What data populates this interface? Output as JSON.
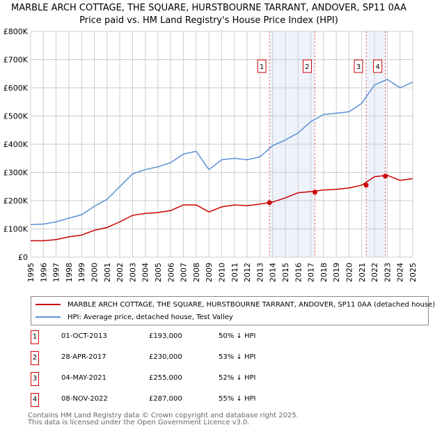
{
  "title": "MARBLE ARCH COTTAGE, THE SQUARE, HURSTBOURNE TARRANT, ANDOVER, SP11 0AA",
  "subtitle": "Price paid vs. HM Land Registry's House Price Index (HPI)",
  "chart_data": {
    "type": "line",
    "title": "MARBLE ARCH COTTAGE, THE SQUARE, HURSTBOURNE TARRANT, ANDOVER, SP11 0AA",
    "ylim": [
      0,
      800000
    ],
    "xlim": [
      1995,
      2025
    ],
    "yticks": [
      {
        "v": 0,
        "label": "£0"
      },
      {
        "v": 100000,
        "label": "£100K"
      },
      {
        "v": 200000,
        "label": "£200K"
      },
      {
        "v": 300000,
        "label": "£300K"
      },
      {
        "v": 400000,
        "label": "£400K"
      },
      {
        "v": 500000,
        "label": "£500K"
      },
      {
        "v": 600000,
        "label": "£600K"
      },
      {
        "v": 700000,
        "label": "£700K"
      },
      {
        "v": 800000,
        "label": "£800K"
      }
    ],
    "xticks": [
      "1995",
      "1996",
      "1997",
      "1998",
      "1999",
      "2000",
      "2001",
      "2002",
      "2003",
      "2004",
      "2005",
      "2006",
      "2007",
      "2008",
      "2009",
      "2010",
      "2011",
      "2012",
      "2013",
      "2014",
      "2015",
      "2016",
      "2017",
      "2018",
      "2019",
      "2020",
      "2021",
      "2022",
      "2023",
      "2024",
      "2025"
    ],
    "x": [
      1995,
      1996,
      1997,
      1998,
      1999,
      2000,
      2001,
      2002,
      2003,
      2004,
      2005,
      2006,
      2007,
      2008,
      2009,
      2010,
      2011,
      2012,
      2013,
      2014,
      2015,
      2016,
      2017,
      2018,
      2019,
      2020,
      2021,
      2022,
      2023,
      2024,
      2025
    ],
    "series": [
      {
        "name": "MARBLE ARCH COTTAGE, THE SQUARE, HURSTBOURNE TARRANT, ANDOVER, SP11 0AA (detached house)",
        "color": "#cc0000",
        "values": [
          58000,
          58000,
          62000,
          72000,
          78000,
          95000,
          105000,
          125000,
          148000,
          155000,
          158000,
          165000,
          185000,
          185000,
          160000,
          178000,
          185000,
          182000,
          188000,
          195000,
          210000,
          228000,
          232000,
          238000,
          240000,
          245000,
          255000,
          285000,
          290000,
          272000,
          278000
        ]
      },
      {
        "name": "HPI: Average price, detached house, Test Valley",
        "color": "#5b8fd4",
        "values": [
          115000,
          117000,
          125000,
          138000,
          150000,
          180000,
          205000,
          250000,
          295000,
          310000,
          320000,
          335000,
          365000,
          375000,
          310000,
          345000,
          350000,
          345000,
          355000,
          395000,
          415000,
          440000,
          480000,
          505000,
          510000,
          515000,
          545000,
          610000,
          630000,
          600000,
          620000
        ]
      }
    ],
    "sales": [
      {
        "n": "1",
        "x": 2013.75,
        "date": "01-OCT-2013",
        "price": 193000,
        "price_label": "£193,000",
        "hpi": "50% ↓ HPI"
      },
      {
        "n": "2",
        "x": 2017.32,
        "date": "28-APR-2017",
        "price": 230000,
        "price_label": "£230,000",
        "hpi": "53% ↓ HPI"
      },
      {
        "n": "3",
        "x": 2021.34,
        "date": "04-MAY-2021",
        "price": 255000,
        "price_label": "£255,000",
        "hpi": "52% ↓ HPI"
      },
      {
        "n": "4",
        "x": 2022.85,
        "date": "08-NOV-2022",
        "price": 287000,
        "price_label": "£287,000",
        "hpi": "55% ↓ HPI"
      }
    ]
  },
  "legend": {
    "red": "MARBLE ARCH COTTAGE, THE SQUARE, HURSTBOURNE TARRANT, ANDOVER, SP11 0AA (detached house)",
    "blue": "HPI: Average price, detached house, Test Valley"
  },
  "footer": {
    "line1": "Contains HM Land Registry data © Crown copyright and database right 2025.",
    "line2": "This data is licensed under the Open Government Licence v3.0."
  }
}
